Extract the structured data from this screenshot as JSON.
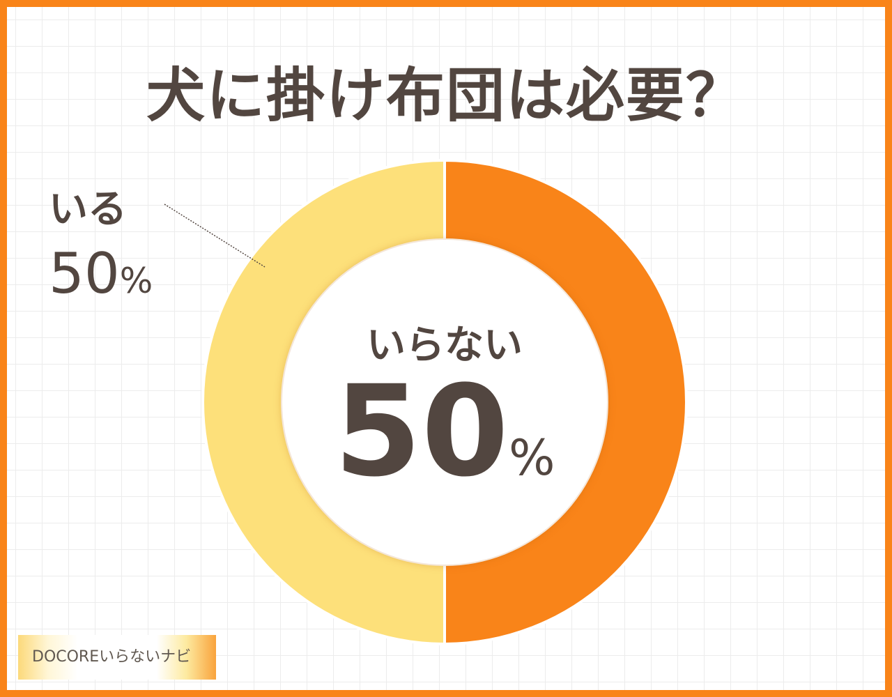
{
  "title": "犬に掛け布団は必要？",
  "chart_data": {
    "type": "pie",
    "donut": true,
    "series": [
      {
        "name": "いらない",
        "value": 50,
        "color": "#f98419"
      },
      {
        "name": "いる",
        "value": 50,
        "color": "#fde07a"
      }
    ],
    "labels": [
      {
        "name": "いる",
        "value": "50",
        "unit": "%"
      },
      {
        "name": "いらない",
        "value": "50",
        "unit": "%"
      }
    ]
  },
  "logo": "DOCOREいらないナビ",
  "colors": {
    "border": "#f98419",
    "text": "#524640"
  }
}
